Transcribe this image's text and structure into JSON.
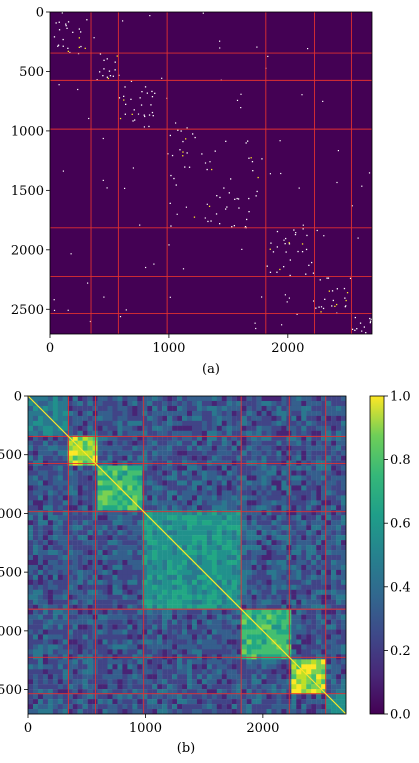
{
  "chart_data": [
    {
      "type": "heatmap",
      "caption": "(a)",
      "xticks": [
        "0",
        "1000",
        "2000"
      ],
      "yticks": [
        "0",
        "500",
        "1000",
        "1500",
        "2000",
        "2500"
      ],
      "xlim": [
        0,
        2708
      ],
      "ylim": [
        2708,
        0
      ],
      "colormap": "viridis",
      "background_color": "#440154",
      "boundary_color": "#e03030",
      "boundaries": [
        345,
        575,
        985,
        1815,
        2225,
        2535
      ],
      "note_values": "sparse binary matrix; nonzero entries concentrated in diagonal blocks"
    },
    {
      "type": "heatmap",
      "caption": "(b)",
      "xticks": [
        "0",
        "1000",
        "2000"
      ],
      "yticks": [
        "0",
        "500",
        "1000",
        "1500",
        "2000",
        "2500"
      ],
      "xlim": [
        0,
        2708
      ],
      "ylim": [
        2708,
        0
      ],
      "colormap": "viridis",
      "boundary_color": "#e03030",
      "boundaries": [
        345,
        575,
        985,
        1815,
        2225,
        2535
      ],
      "colorbar": {
        "ticks": [
          "0.0",
          "0.2",
          "0.4",
          "0.6",
          "0.8",
          "1.0"
        ],
        "range": [
          0.0,
          1.0
        ]
      }
    }
  ]
}
